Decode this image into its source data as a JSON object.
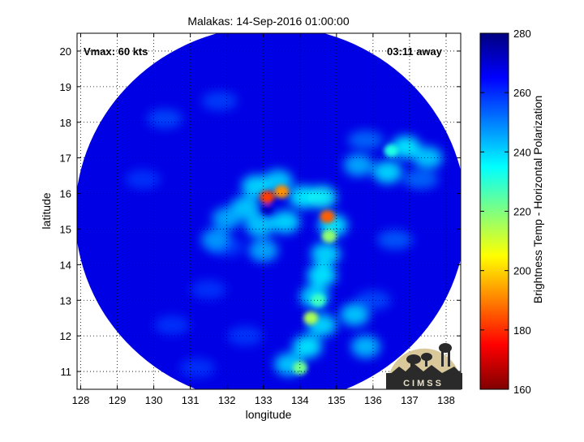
{
  "chart_data": {
    "type": "heatmap",
    "title": "Malakas: 14-Sep-2016 01:00:00",
    "xlabel": "longitude",
    "ylabel": "latitude",
    "xlim": [
      127.9,
      138.4
    ],
    "ylim": [
      10.5,
      20.5
    ],
    "x_ticks": [
      "128",
      "129",
      "130",
      "131",
      "132",
      "133",
      "134",
      "135",
      "136",
      "137",
      "138"
    ],
    "y_ticks": [
      "11",
      "12",
      "13",
      "14",
      "15",
      "16",
      "17",
      "18",
      "19",
      "20"
    ],
    "grid": true,
    "annotations": {
      "vmax": "Vmax: 60 kts",
      "away": "03:11 away"
    },
    "colorbar": {
      "label": "Brightness Temp - Horizontal Polarization",
      "range": [
        160,
        280
      ],
      "ticks": [
        "160",
        "180",
        "200",
        "220",
        "240",
        "260",
        "280"
      ],
      "colormap": "jet"
    },
    "swath": {
      "center": [
        133.2,
        15.4
      ],
      "radius_deg_lon": 5.35,
      "radius_deg_lat": 5.3
    },
    "background_brightness_temp": 268,
    "features": [
      {
        "name": "eyewall-north",
        "lon": 133.1,
        "lat": 15.9,
        "value": 182
      },
      {
        "name": "eyewall-northeast",
        "lon": 133.5,
        "lat": 16.05,
        "value": 192
      },
      {
        "name": "rainband-east",
        "lon": 134.75,
        "lat": 15.35,
        "value": 186
      },
      {
        "name": "rainband-east-mid",
        "lon": 134.8,
        "lat": 14.8,
        "value": 218
      },
      {
        "name": "rainband-south",
        "lon": 134.5,
        "lat": 13.0,
        "value": 228
      },
      {
        "name": "rainband-south-2",
        "lon": 134.3,
        "lat": 12.5,
        "value": 215
      },
      {
        "name": "rainband-south-3",
        "lon": 134.0,
        "lat": 11.1,
        "value": 222
      },
      {
        "name": "band-northeast",
        "lon": 136.5,
        "lat": 17.2,
        "value": 232
      }
    ],
    "logo_text": "CIMSS"
  }
}
